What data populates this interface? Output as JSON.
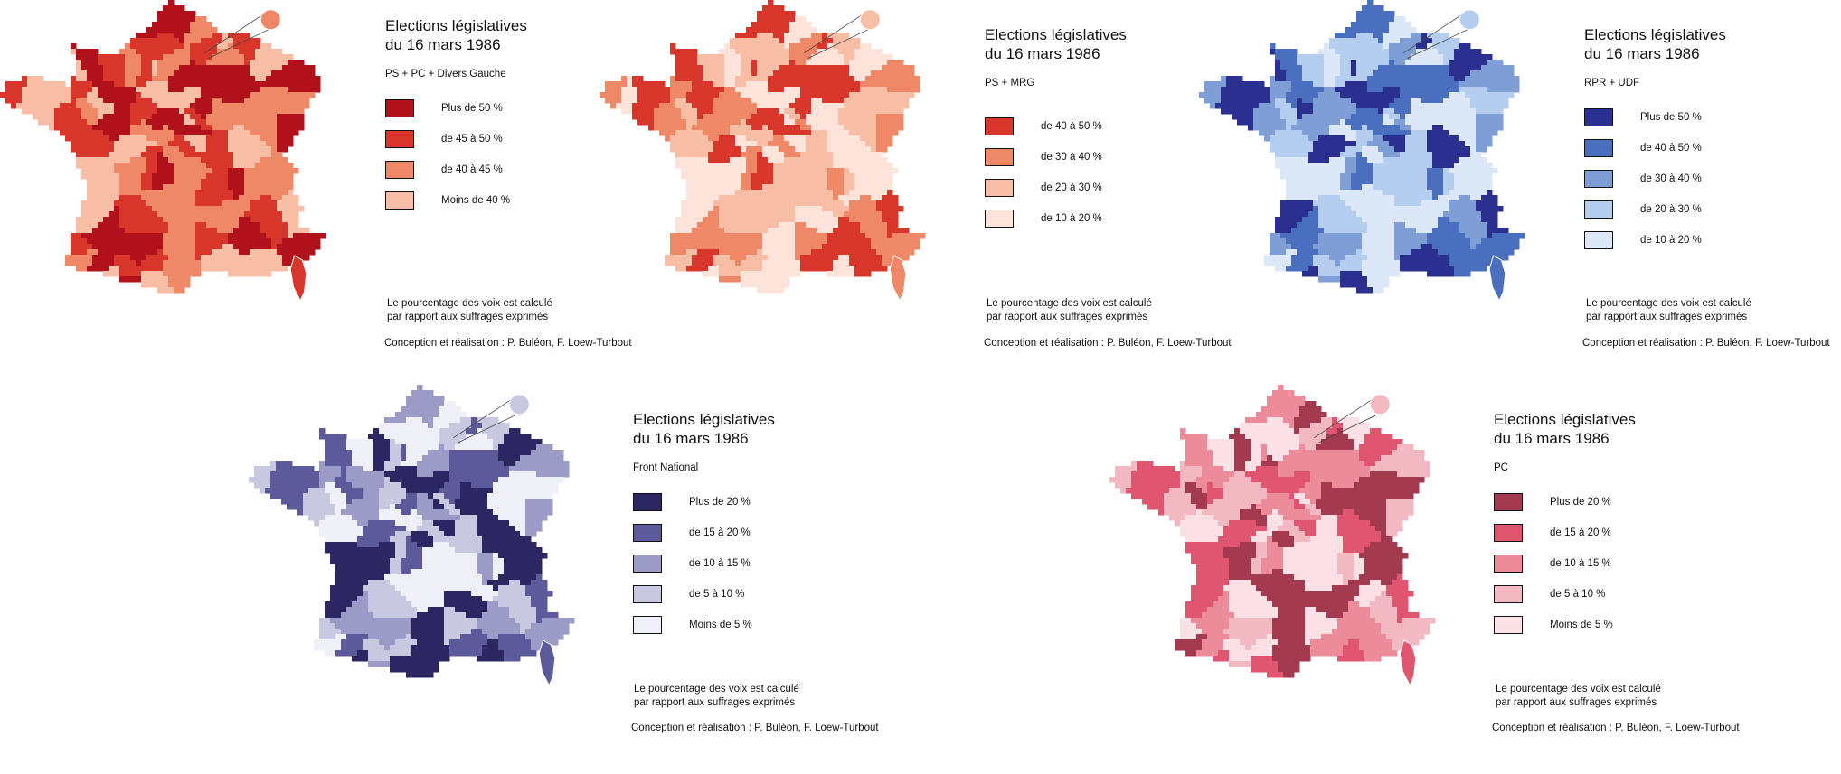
{
  "panels": [
    {
      "title_line1": "Elections législatives",
      "title_line2": "du 16 mars 1986",
      "subtitle": "PS + PC + Divers Gauche",
      "legend": [
        {
          "label": "Plus de 50 %",
          "color": "#b0111a"
        },
        {
          "label": "de 45 à 50 %",
          "color": "#d9362b"
        },
        {
          "label": "de 40 à 45 %",
          "color": "#ef8866"
        },
        {
          "label": "Moins de 40 %",
          "color": "#f8bda5"
        }
      ],
      "note_line1": "Le pourcentage des voix est calculé",
      "note_line2": "par rapport aux suffrages exprimés",
      "credit": "Conception et réalisation : P. Buléon, F. Loew-Turbout"
    },
    {
      "title_line1": "Elections législatives",
      "title_line2": "du 16 mars 1986",
      "subtitle": "PS + MRG",
      "legend": [
        {
          "label": "de 40 à 50 %",
          "color": "#d9362b"
        },
        {
          "label": "de 30 à 40 %",
          "color": "#ef8866"
        },
        {
          "label": "de 20 à 30 %",
          "color": "#f8bda5"
        },
        {
          "label": "de 10 à 20 %",
          "color": "#fde3da"
        }
      ],
      "note_line1": "Le pourcentage des voix est calculé",
      "note_line2": "par rapport aux suffrages exprimés",
      "credit": "Conception et réalisation : P. Buléon, F. Loew-Turbout"
    },
    {
      "title_line1": "Elections législatives",
      "title_line2": "du 16 mars 1986",
      "subtitle": "RPR + UDF",
      "legend": [
        {
          "label": "Plus de 50 %",
          "color": "#2b2f8f"
        },
        {
          "label": "de 40 à 50 %",
          "color": "#4a6fbe"
        },
        {
          "label": "de 30 à 40 %",
          "color": "#7e9ed5"
        },
        {
          "label": "de 20 à 30 %",
          "color": "#b5cdee"
        },
        {
          "label": "de 10 à 20 %",
          "color": "#dce7f7"
        }
      ],
      "note_line1": "Le pourcentage des voix est calculé",
      "note_line2": "par rapport aux suffrages exprimés",
      "credit": "Conception et réalisation : P. Buléon, F. Loew-Turbout"
    },
    {
      "title_line1": "Elections législatives",
      "title_line2": "du 16 mars 1986",
      "subtitle": "Front National",
      "legend": [
        {
          "label": "Plus de 20 %",
          "color": "#2c2663"
        },
        {
          "label": "de 15 à 20 %",
          "color": "#5c5a9a"
        },
        {
          "label": "de 10 à 15 %",
          "color": "#9c9ac6"
        },
        {
          "label": "de 5 à 10 %",
          "color": "#c9c8e1"
        },
        {
          "label": "Moins de 5 %",
          "color": "#efeff7"
        }
      ],
      "note_line1": "Le pourcentage des voix est calculé",
      "note_line2": "par rapport aux suffrages exprimés",
      "credit": "Conception et réalisation : P. Buléon, F. Loew-Turbout"
    },
    {
      "title_line1": "Elections législatives",
      "title_line2": "du 16 mars 1986",
      "subtitle": "PC",
      "legend": [
        {
          "label": "Plus de 20 %",
          "color": "#a33a4f"
        },
        {
          "label": "de 15 à 20 %",
          "color": "#e05570"
        },
        {
          "label": "de 10 à 15 %",
          "color": "#ec8b99"
        },
        {
          "label": "de 5 à 10 %",
          "color": "#f3b9c3"
        },
        {
          "label": "Moins de 5 %",
          "color": "#fbe0e5"
        }
      ],
      "note_line1": "Le pourcentage des voix est calculé",
      "note_line2": "par rapport aux suffrages exprimés",
      "credit": "Conception et réalisation : P. Buléon, F. Loew-Turbout"
    }
  ]
}
